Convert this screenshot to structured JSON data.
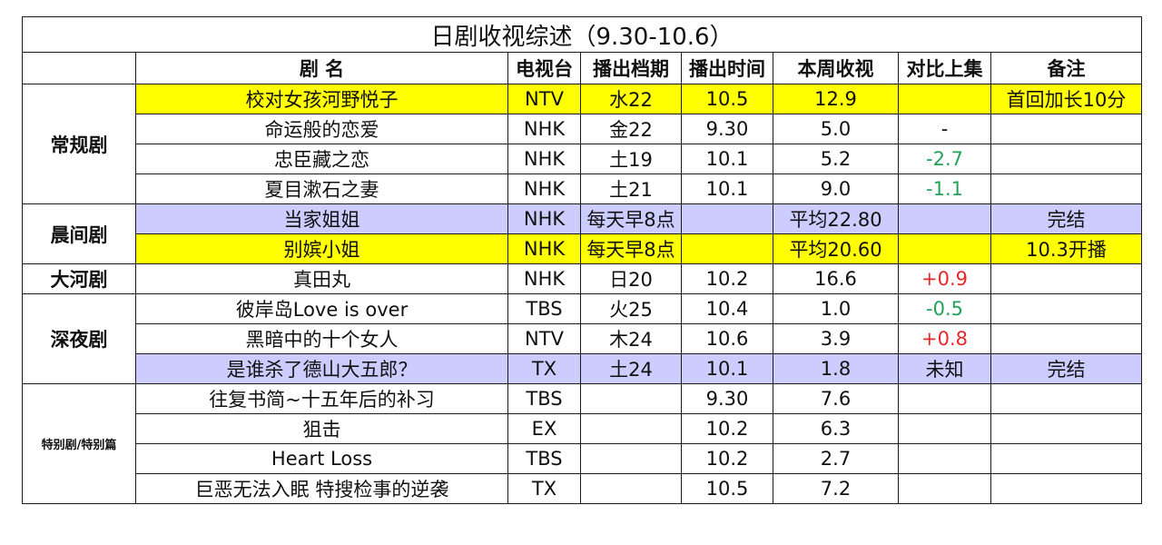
{
  "title": "日剧收视综述（9.30-10.6）",
  "headers": [
    "",
    "剧 名",
    "电视台",
    "播出档期",
    "播出时间",
    "本周收视",
    "对比上集",
    "备注"
  ],
  "colors": {
    "yellow": "#ffff00",
    "blue": "#ccccff",
    "decrease": "#22a35a",
    "increase": "#e8262b"
  },
  "groups": [
    {
      "category": "常规剧",
      "small": false,
      "rows": [
        {
          "name": "校对女孩河野悦子",
          "station": "NTV",
          "slot": "水22",
          "air": "10.5",
          "rating": "12.9",
          "change": "",
          "change_type": "",
          "note": "首回加长10分",
          "highlight": "yellow"
        },
        {
          "name": "命运般的恋爱",
          "station": "NHK",
          "slot": "金22",
          "air": "9.30",
          "rating": "5.0",
          "change": "-",
          "change_type": "",
          "note": "",
          "highlight": ""
        },
        {
          "name": "忠臣藏之恋",
          "station": "NHK",
          "slot": "土19",
          "air": "10.1",
          "rating": "5.2",
          "change": "-2.7",
          "change_type": "neg",
          "note": "",
          "highlight": ""
        },
        {
          "name": "夏目漱石之妻",
          "station": "NHK",
          "slot": "土21",
          "air": "10.1",
          "rating": "9.0",
          "change": "-1.1",
          "change_type": "neg",
          "note": "",
          "highlight": ""
        }
      ]
    },
    {
      "category": "晨间剧",
      "small": false,
      "rows": [
        {
          "name": "当家姐姐",
          "station": "NHK",
          "slot": "每天早8点",
          "air": "",
          "rating": "平均22.80",
          "change": "",
          "change_type": "",
          "note": "完结",
          "highlight": "blue"
        },
        {
          "name": "别嫔小姐",
          "station": "NHK",
          "slot": "每天早8点",
          "air": "",
          "rating": "平均20.60",
          "change": "",
          "change_type": "",
          "note": "10.3开播",
          "highlight": "yellow"
        }
      ]
    },
    {
      "category": "大河剧",
      "small": false,
      "rows": [
        {
          "name": "真田丸",
          "station": "NHK",
          "slot": "日20",
          "air": "10.2",
          "rating": "16.6",
          "change": "+0.9",
          "change_type": "pos",
          "note": "",
          "highlight": ""
        }
      ]
    },
    {
      "category": "深夜剧",
      "small": false,
      "rows": [
        {
          "name": "彼岸岛Love is over",
          "station": "TBS",
          "slot": "火25",
          "air": "10.4",
          "rating": "1.0",
          "change": "-0.5",
          "change_type": "neg",
          "note": "",
          "highlight": ""
        },
        {
          "name": "黑暗中的十个女人",
          "station": "NTV",
          "slot": "木24",
          "air": "10.6",
          "rating": "3.9",
          "change": "+0.8",
          "change_type": "pos",
          "note": "",
          "highlight": ""
        },
        {
          "name": "是谁杀了德山大五郎？",
          "station": "TX",
          "slot": "土24",
          "air": "10.1",
          "rating": "1.8",
          "change": "未知",
          "change_type": "",
          "note": "完结",
          "highlight": "blue"
        }
      ]
    },
    {
      "category": "特别剧/特别篇",
      "small": true,
      "rows": [
        {
          "name": "往复书简~十五年后的补习",
          "station": "TBS",
          "slot": "",
          "air": "9.30",
          "rating": "7.6",
          "change": "",
          "change_type": "",
          "note": "",
          "highlight": ""
        },
        {
          "name": "狙击",
          "station": "EX",
          "slot": "",
          "air": "10.2",
          "rating": "6.3",
          "change": "",
          "change_type": "",
          "note": "",
          "highlight": ""
        },
        {
          "name": "Heart Loss",
          "station": "TBS",
          "slot": "",
          "air": "10.2",
          "rating": "2.7",
          "change": "",
          "change_type": "",
          "note": "",
          "highlight": ""
        },
        {
          "name": "巨恶无法入眠 特搜检事的逆袭",
          "station": "TX",
          "slot": "",
          "air": "10.5",
          "rating": "7.2",
          "change": "",
          "change_type": "",
          "note": "",
          "highlight": ""
        }
      ]
    }
  ]
}
